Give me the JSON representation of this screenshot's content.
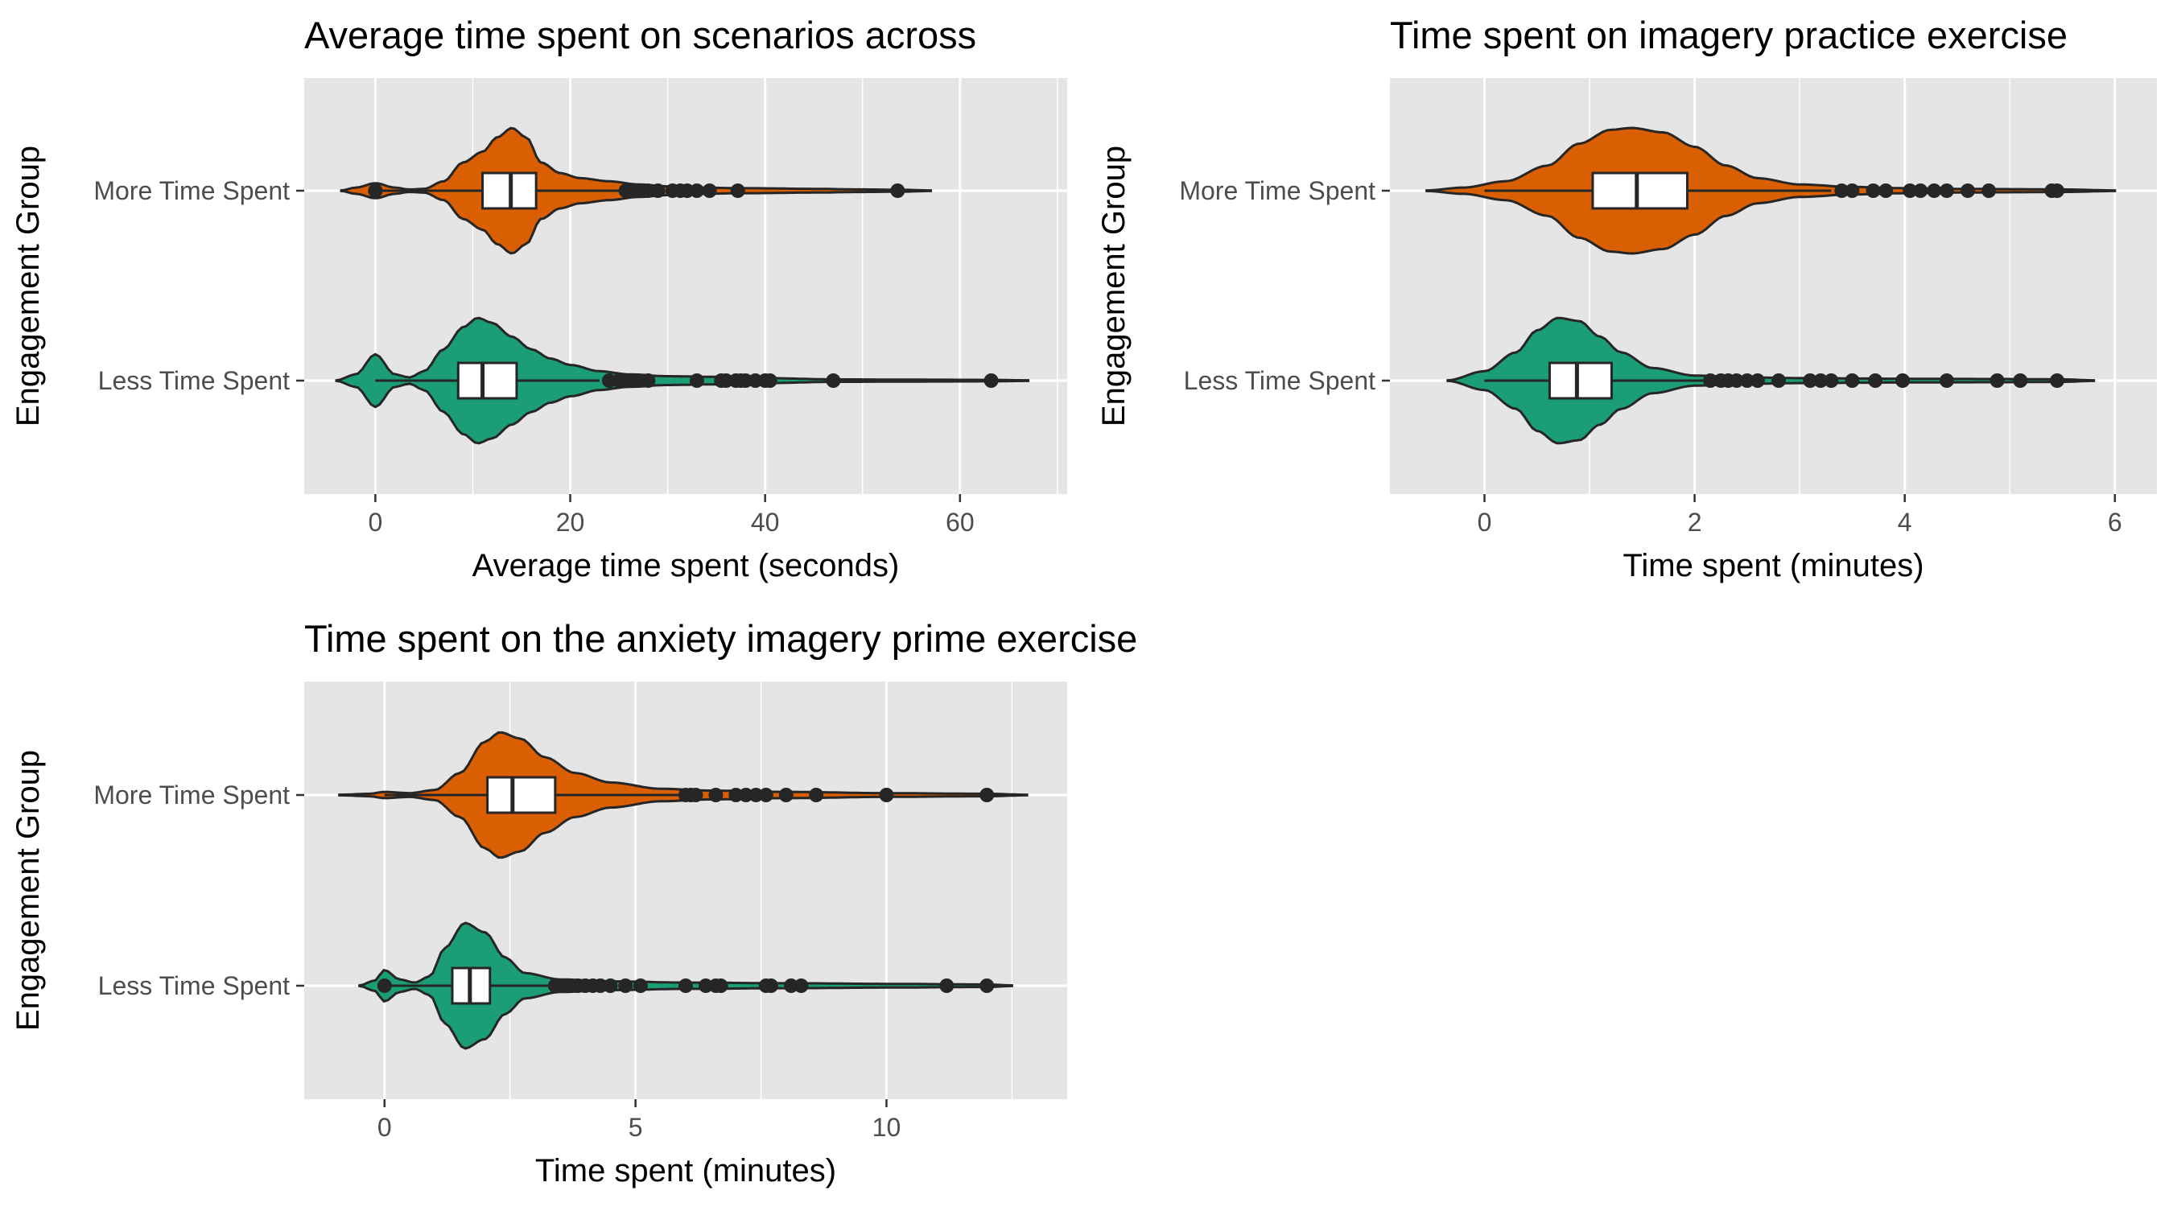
{
  "colors": {
    "more": "#D95F02",
    "less": "#1B9E77",
    "panel_bg": "#E5E5E5",
    "grid": "#FFFFFF",
    "outline": "#262626"
  },
  "chart_data": [
    {
      "type": "violin",
      "title": "Average time spent on scenarios across",
      "xlabel": "Average time spent (seconds)",
      "ylabel": "Engagement Group",
      "xlim": [
        -7.3,
        71
      ],
      "xticks": [
        0,
        20,
        40,
        60
      ],
      "categories": [
        "More Time Spent",
        "Less Time Spent"
      ],
      "grid": true,
      "series": [
        {
          "name": "More Time Spent",
          "range": [
            -3.5,
            57
          ],
          "density": [
            [
              -3.5,
              0.005
            ],
            [
              -2,
              0.05
            ],
            [
              0,
              0.12
            ],
            [
              2,
              0.05
            ],
            [
              3.5,
              0.02
            ],
            [
              5,
              0.03
            ],
            [
              7,
              0.15
            ],
            [
              9,
              0.45
            ],
            [
              11,
              0.62
            ],
            [
              12.5,
              0.85
            ],
            [
              14,
              1.0
            ],
            [
              15.5,
              0.85
            ],
            [
              17,
              0.45
            ],
            [
              19,
              0.28
            ],
            [
              21,
              0.2
            ],
            [
              24,
              0.15
            ],
            [
              27,
              0.1
            ],
            [
              30,
              0.07
            ],
            [
              33,
              0.05
            ],
            [
              38,
              0.04
            ],
            [
              45,
              0.03
            ],
            [
              50,
              0.02
            ],
            [
              54,
              0.015
            ],
            [
              57,
              0.005
            ]
          ],
          "box": {
            "q1": 11,
            "median": 13.9,
            "q3": 16.5,
            "whisker_low": 0,
            "whisker_high": 25
          },
          "outliers": [
            0,
            25.7,
            26.2,
            26.8,
            27.4,
            28,
            29,
            30.5,
            31.3,
            32,
            33,
            34.3,
            37.2,
            53.6
          ]
        },
        {
          "name": "Less Time Spent",
          "range": [
            -4,
            67
          ],
          "density": [
            [
              -4,
              0.005
            ],
            [
              -2,
              0.1
            ],
            [
              0,
              0.42
            ],
            [
              2,
              0.1
            ],
            [
              3.5,
              0.05
            ],
            [
              5,
              0.15
            ],
            [
              7,
              0.5
            ],
            [
              9,
              0.85
            ],
            [
              10.5,
              1.0
            ],
            [
              12,
              0.92
            ],
            [
              14,
              0.7
            ],
            [
              16,
              0.5
            ],
            [
              18,
              0.35
            ],
            [
              20,
              0.25
            ],
            [
              23,
              0.15
            ],
            [
              26,
              0.1
            ],
            [
              30,
              0.07
            ],
            [
              35,
              0.06
            ],
            [
              40,
              0.04
            ],
            [
              47,
              0.02
            ],
            [
              55,
              0.015
            ],
            [
              63,
              0.012
            ],
            [
              67,
              0.005
            ]
          ],
          "box": {
            "q1": 8.5,
            "median": 11,
            "q3": 14.5,
            "whisker_low": 0,
            "whisker_high": 23
          },
          "outliers": [
            24,
            25,
            26,
            27,
            28,
            33,
            35.5,
            36,
            37,
            37.5,
            38,
            39,
            40,
            40.5,
            47,
            63.2
          ]
        }
      ]
    },
    {
      "type": "violin",
      "title": "Time spent on imagery practice exercise",
      "xlabel": "Time spent (minutes)",
      "ylabel": "Engagement Group",
      "xlim": [
        -0.9,
        6.4
      ],
      "xticks": [
        0,
        2,
        4,
        6
      ],
      "categories": [
        "More Time Spent",
        "Less Time Spent"
      ],
      "grid": true,
      "series": [
        {
          "name": "More Time Spent",
          "range": [
            -0.55,
            6
          ],
          "density": [
            [
              -0.55,
              0.005
            ],
            [
              -0.2,
              0.05
            ],
            [
              0.2,
              0.15
            ],
            [
              0.6,
              0.4
            ],
            [
              0.9,
              0.75
            ],
            [
              1.2,
              0.97
            ],
            [
              1.4,
              1.0
            ],
            [
              1.7,
              0.93
            ],
            [
              2.0,
              0.7
            ],
            [
              2.3,
              0.4
            ],
            [
              2.6,
              0.2
            ],
            [
              3.0,
              0.1
            ],
            [
              3.5,
              0.06
            ],
            [
              4.0,
              0.04
            ],
            [
              4.5,
              0.03
            ],
            [
              5.0,
              0.025
            ],
            [
              5.5,
              0.02
            ],
            [
              6.0,
              0.005
            ]
          ],
          "box": {
            "q1": 1.03,
            "median": 1.45,
            "q3": 1.93,
            "whisker_low": 0,
            "whisker_high": 3.3
          },
          "outliers": [
            3.4,
            3.5,
            3.7,
            3.82,
            4.05,
            4.15,
            4.28,
            4.4,
            4.6,
            4.8,
            5.4,
            5.45
          ]
        },
        {
          "name": "Less Time Spent",
          "range": [
            -0.35,
            5.8
          ],
          "density": [
            [
              -0.35,
              0.005
            ],
            [
              0,
              0.15
            ],
            [
              0.3,
              0.45
            ],
            [
              0.5,
              0.8
            ],
            [
              0.7,
              1.0
            ],
            [
              0.9,
              0.95
            ],
            [
              1.1,
              0.7
            ],
            [
              1.3,
              0.45
            ],
            [
              1.6,
              0.2
            ],
            [
              2.0,
              0.08
            ],
            [
              2.5,
              0.05
            ],
            [
              3.0,
              0.04
            ],
            [
              4.0,
              0.03
            ],
            [
              5.0,
              0.025
            ],
            [
              5.5,
              0.02
            ],
            [
              5.8,
              0.005
            ]
          ],
          "box": {
            "q1": 0.62,
            "median": 0.88,
            "q3": 1.21,
            "whisker_low": 0,
            "whisker_high": 2.1
          },
          "outliers": [
            2.15,
            2.25,
            2.32,
            2.4,
            2.5,
            2.6,
            2.8,
            3.1,
            3.2,
            3.3,
            3.5,
            3.72,
            3.98,
            4.4,
            4.88,
            5.1,
            5.45
          ]
        }
      ]
    },
    {
      "type": "violin",
      "title": "Time spent on the anxiety imagery prime exercise",
      "xlabel": "Time spent (minutes)",
      "ylabel": "Engagement Group",
      "xlim": [
        -1.6,
        13.6
      ],
      "xticks": [
        0,
        5,
        10
      ],
      "categories": [
        "More Time Spent",
        "Less Time Spent"
      ],
      "grid": true,
      "series": [
        {
          "name": "More Time Spent",
          "range": [
            -0.9,
            12.8
          ],
          "density": [
            [
              -0.9,
              0.005
            ],
            [
              -0.3,
              0.02
            ],
            [
              0,
              0.05
            ],
            [
              0.5,
              0.03
            ],
            [
              1.0,
              0.08
            ],
            [
              1.5,
              0.35
            ],
            [
              2.0,
              0.85
            ],
            [
              2.3,
              1.0
            ],
            [
              2.7,
              0.9
            ],
            [
              3.2,
              0.6
            ],
            [
              3.8,
              0.35
            ],
            [
              4.5,
              0.2
            ],
            [
              5.5,
              0.1
            ],
            [
              6.5,
              0.07
            ],
            [
              8,
              0.05
            ],
            [
              10,
              0.03
            ],
            [
              12,
              0.02
            ],
            [
              12.8,
              0.005
            ]
          ],
          "box": {
            "q1": 2.05,
            "median": 2.55,
            "q3": 3.4,
            "whisker_low": 0,
            "whisker_high": 5.9
          },
          "outliers": [
            6.0,
            6.1,
            6.2,
            6.6,
            7.0,
            7.2,
            7.4,
            7.6,
            8.0,
            8.6,
            10.0,
            12.0
          ]
        },
        {
          "name": "Less Time Spent",
          "range": [
            -0.5,
            12.5
          ],
          "density": [
            [
              -0.5,
              0.005
            ],
            [
              -0.2,
              0.08
            ],
            [
              0,
              0.25
            ],
            [
              0.3,
              0.1
            ],
            [
              0.6,
              0.05
            ],
            [
              0.9,
              0.15
            ],
            [
              1.2,
              0.6
            ],
            [
              1.6,
              1.0
            ],
            [
              2.0,
              0.85
            ],
            [
              2.4,
              0.45
            ],
            [
              2.8,
              0.2
            ],
            [
              3.5,
              0.1
            ],
            [
              4.5,
              0.07
            ],
            [
              6,
              0.05
            ],
            [
              8,
              0.04
            ],
            [
              10,
              0.03
            ],
            [
              12,
              0.02
            ],
            [
              12.5,
              0.005
            ]
          ],
          "box": {
            "q1": 1.35,
            "median": 1.7,
            "q3": 2.1,
            "whisker_low": 0,
            "whisker_high": 3.3
          },
          "outliers": [
            0,
            3.4,
            3.55,
            3.7,
            3.85,
            4.0,
            4.15,
            4.3,
            4.5,
            4.8,
            5.1,
            6.0,
            6.4,
            6.6,
            6.7,
            7.6,
            7.7,
            8.1,
            8.3,
            11.2,
            12.0
          ]
        }
      ]
    }
  ]
}
